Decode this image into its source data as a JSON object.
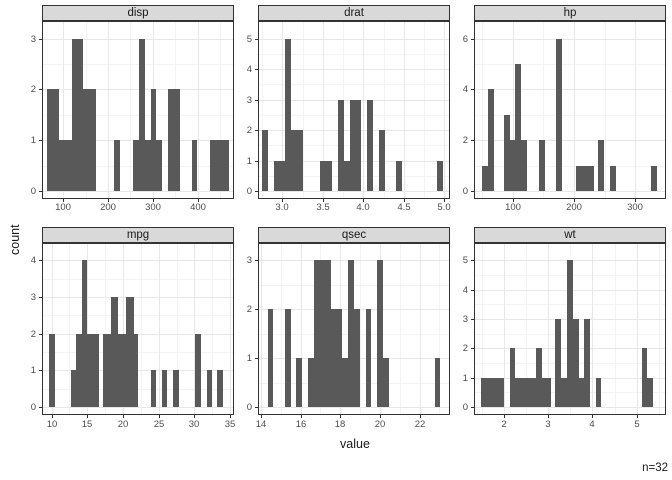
{
  "labels": {
    "x_axis_title": "value",
    "y_axis_title": "count",
    "annotation": "n=32"
  },
  "style": {
    "bar_fill": "#595959",
    "strip_bg": "#d9d9d9",
    "panel_border": "#333333",
    "grid_major": "#e7e7e7",
    "grid_minor": "#f3f3f3",
    "tick_text": "#4d4d4d",
    "title_text": "#1a1a1a",
    "background": "#ffffff"
  },
  "chart_data": {
    "type": "bar",
    "subtype": "faceted-histograms",
    "title": "",
    "xlabel": "value",
    "ylabel": "count",
    "annotation": "n=32",
    "grid": "on",
    "legend": "none",
    "facet_layout": {
      "rows": 2,
      "cols": 3,
      "order": [
        "disp",
        "drat",
        "hp",
        "mpg",
        "qsec",
        "wt"
      ]
    },
    "facets": [
      {
        "name": "disp",
        "x_domain": [
          55,
          479
        ],
        "x_ticks": [
          100,
          200,
          300,
          400
        ],
        "x_tick_labels": [
          "100",
          "200",
          "300",
          "400"
        ],
        "x_minor": [
          150,
          250,
          350,
          450
        ],
        "y_top": 3,
        "y_ticks": [
          0,
          1,
          2,
          3
        ],
        "y_tick_labels": [
          "0",
          "1",
          "2",
          "3"
        ],
        "y_minor": [
          0.5,
          1.5,
          2.5
        ],
        "bars": [
          [
            64.5,
            91.5,
            2
          ],
          [
            91.5,
            118.8,
            1
          ],
          [
            118.8,
            145.3,
            3
          ],
          [
            145.3,
            172.4,
            2
          ],
          [
            213,
            227,
            1
          ],
          [
            256,
            269,
            1
          ],
          [
            269,
            282.5,
            3
          ],
          [
            282.5,
            295,
            1
          ],
          [
            295,
            308,
            2
          ],
          [
            308,
            321.5,
            1
          ],
          [
            334,
            360.5,
            2
          ],
          [
            386.5,
            398,
            1
          ],
          [
            428,
            470,
            1
          ]
        ]
      },
      {
        "name": "drat",
        "x_domain": [
          2.71,
          5.06
        ],
        "x_ticks": [
          3.0,
          3.5,
          4.0,
          4.5,
          5.0
        ],
        "x_tick_labels": [
          "3.0",
          "3.5",
          "4.0",
          "4.5",
          "5.0"
        ],
        "x_minor": [
          2.75,
          3.25,
          3.75,
          4.25,
          4.75
        ],
        "y_top": 5,
        "y_ticks": [
          0,
          1,
          2,
          3,
          4,
          5
        ],
        "y_tick_labels": [
          "0",
          "1",
          "2",
          "3",
          "4",
          "5"
        ],
        "y_minor": [
          0.5,
          1.5,
          2.5,
          3.5,
          4.5
        ],
        "bars": [
          [
            2.747,
            2.82,
            2
          ],
          [
            2.892,
            3.036,
            1
          ],
          [
            3.036,
            3.109,
            5
          ],
          [
            3.109,
            3.253,
            2
          ],
          [
            3.47,
            3.615,
            1
          ],
          [
            3.687,
            3.76,
            3
          ],
          [
            3.76,
            3.832,
            1
          ],
          [
            3.832,
            3.977,
            3
          ],
          [
            4.049,
            4.121,
            3
          ],
          [
            4.193,
            4.266,
            2
          ],
          [
            4.41,
            4.483,
            1
          ],
          [
            4.917,
            4.989,
            1
          ]
        ]
      },
      {
        "name": "hp",
        "x_domain": [
          38,
          349
        ],
        "x_ticks": [
          100,
          200,
          300
        ],
        "x_tick_labels": [
          "100",
          "200",
          "300"
        ],
        "x_minor": [
          50,
          150,
          250
        ],
        "y_top": 6,
        "y_ticks": [
          0,
          2,
          4,
          6
        ],
        "y_tick_labels": [
          "0",
          "2",
          "4",
          "6"
        ],
        "y_minor": [
          1,
          3,
          5
        ],
        "bars": [
          [
            50,
            59.7,
            1
          ],
          [
            59.7,
            69.3,
            4
          ],
          [
            84.9,
            94.5,
            3
          ],
          [
            94.5,
            104.1,
            2
          ],
          [
            104.1,
            113.7,
            5
          ],
          [
            113.7,
            123.3,
            2
          ],
          [
            142.6,
            152.2,
            2
          ],
          [
            171.4,
            181,
            6
          ],
          [
            203.7,
            232.4,
            1
          ],
          [
            239.9,
            249.4,
            2
          ],
          [
            259,
            268.6,
            1
          ],
          [
            326,
            335.6,
            1
          ]
        ]
      },
      {
        "name": "mpg",
        "x_domain": [
          8.8,
          35.4
        ],
        "x_ticks": [
          10,
          15,
          20,
          25,
          30,
          35
        ],
        "x_tick_labels": [
          "10",
          "15",
          "20",
          "25",
          "30",
          "35"
        ],
        "x_minor": [
          12.5,
          17.5,
          22.5,
          27.5,
          32.5
        ],
        "y_top": 4,
        "y_ticks": [
          0,
          1,
          2,
          3,
          4
        ],
        "y_tick_labels": [
          "0",
          "1",
          "2",
          "3",
          "4"
        ],
        "y_minor": [
          0.5,
          1.5,
          2.5,
          3.5
        ],
        "bars": [
          [
            9.7,
            10.5,
            2
          ],
          [
            12.65,
            13.4,
            1
          ],
          [
            13.4,
            14.2,
            2
          ],
          [
            14.2,
            15.0,
            4
          ],
          [
            15.0,
            16.66,
            2
          ],
          [
            17.18,
            18.3,
            2
          ],
          [
            18.3,
            19.3,
            3
          ],
          [
            19.3,
            20.4,
            2
          ],
          [
            20.4,
            21.5,
            3
          ],
          [
            21.5,
            22.1,
            2
          ],
          [
            23.9,
            24.65,
            1
          ],
          [
            25.4,
            26.2,
            1
          ],
          [
            27.0,
            27.8,
            1
          ],
          [
            30.1,
            30.9,
            2
          ],
          [
            31.7,
            32.5,
            1
          ],
          [
            33.2,
            34.0,
            1
          ]
        ]
      },
      {
        "name": "qsec",
        "x_domain": [
          13.9,
          23.48
        ],
        "x_ticks": [
          14,
          16,
          18,
          20,
          22
        ],
        "x_tick_labels": [
          "14",
          "16",
          "18",
          "20",
          "22"
        ],
        "x_minor": [
          15,
          17,
          19,
          21,
          23
        ],
        "y_top": 3,
        "y_ticks": [
          0,
          1,
          2,
          3
        ],
        "y_tick_labels": [
          "0",
          "1",
          "2",
          "3"
        ],
        "y_minor": [
          0.5,
          1.5,
          2.5
        ],
        "bars": [
          [
            14.34,
            14.63,
            2
          ],
          [
            15.21,
            15.5,
            2
          ],
          [
            15.79,
            16.08,
            1
          ],
          [
            16.37,
            16.66,
            1
          ],
          [
            16.66,
            17.53,
            3
          ],
          [
            17.53,
            18.11,
            2
          ],
          [
            18.11,
            18.4,
            1
          ],
          [
            18.4,
            18.69,
            3
          ],
          [
            18.69,
            18.98,
            2
          ],
          [
            19.27,
            19.56,
            2
          ],
          [
            19.85,
            20.14,
            3
          ],
          [
            20.14,
            20.43,
            1
          ],
          [
            22.75,
            23.04,
            1
          ]
        ]
      },
      {
        "name": "wt",
        "x_domain": [
          1.35,
          5.64
        ],
        "x_ticks": [
          2,
          3,
          4,
          5
        ],
        "x_tick_labels": [
          "2",
          "3",
          "4",
          "5"
        ],
        "x_minor": [
          1.5,
          2.5,
          3.5,
          4.5,
          5.5
        ],
        "y_top": 5,
        "y_ticks": [
          0,
          1,
          2,
          3,
          4,
          5
        ],
        "y_tick_labels": [
          "0",
          "1",
          "2",
          "3",
          "4",
          "5"
        ],
        "y_minor": [
          0.5,
          1.5,
          2.5,
          3.5,
          4.5
        ],
        "bars": [
          [
            1.49,
            2.0,
            1
          ],
          [
            2.13,
            2.26,
            2
          ],
          [
            2.26,
            2.735,
            1
          ],
          [
            2.735,
            2.87,
            2
          ],
          [
            2.87,
            3.06,
            1
          ],
          [
            3.16,
            3.29,
            3
          ],
          [
            3.29,
            3.43,
            1
          ],
          [
            3.43,
            3.56,
            5
          ],
          [
            3.56,
            3.69,
            3
          ],
          [
            3.69,
            3.82,
            1
          ],
          [
            3.82,
            3.95,
            3
          ],
          [
            4.09,
            4.19,
            1
          ],
          [
            5.11,
            5.24,
            2
          ],
          [
            5.24,
            5.37,
            1
          ]
        ]
      }
    ]
  }
}
